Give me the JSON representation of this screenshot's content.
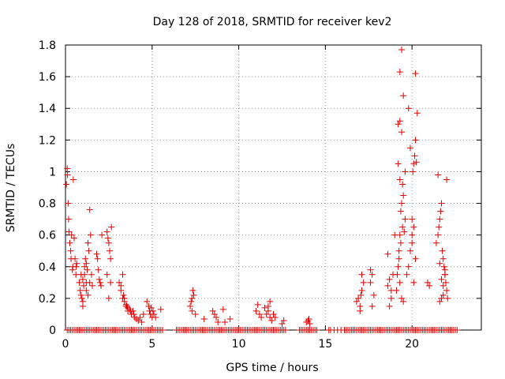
{
  "chart_data": {
    "type": "scatter",
    "title": "Day 128 of 2018, SRMTID for receiver kev2",
    "xlabel": "GPS time / hours",
    "ylabel": "SRMTID / TECUs",
    "xlim": [
      0,
      24
    ],
    "ylim": [
      0,
      1.8
    ],
    "xticks": [
      0,
      5,
      10,
      15,
      20
    ],
    "yticks": [
      0,
      0.2,
      0.4,
      0.6,
      0.8,
      1,
      1.2,
      1.4,
      1.6,
      1.8
    ],
    "xtick_labels": [
      "0",
      "5",
      "10",
      "15",
      "20"
    ],
    "ytick_labels": [
      "0",
      "0.2",
      "0.4",
      "0.6",
      "0.8",
      "1",
      "1.2",
      "1.4",
      "1.6",
      "1.8"
    ],
    "grid": true,
    "marker": "+",
    "color": "#e00000",
    "series": [
      {
        "name": "SRMTID",
        "x": [
          0.05,
          0.1,
          0.12,
          0.15,
          0.18,
          0.2,
          0.25,
          0.3,
          0.32,
          0.35,
          0.4,
          0.42,
          0.45,
          0.5,
          0.55,
          0.6,
          0.62,
          0.65,
          0.8,
          0.85,
          0.9,
          0.95,
          1.0,
          1.0,
          1.05,
          1.1,
          1.1,
          1.15,
          1.2,
          1.2,
          1.25,
          1.3,
          1.35,
          1.4,
          1.45,
          1.5,
          1.55,
          1.2,
          1.3,
          1.4,
          1.0,
          0.9,
          1.8,
          1.85,
          1.9,
          1.95,
          2.0,
          2.05,
          2.1,
          2.4,
          2.45,
          2.5,
          2.55,
          2.6,
          2.65,
          2.4,
          2.5,
          2.6,
          3.1,
          3.2,
          3.3,
          3.35,
          3.4,
          3.5,
          3.55,
          3.6,
          3.7,
          3.75,
          3.8,
          3.9,
          3.95,
          4.0,
          4.1,
          4.2,
          4.3,
          4.4,
          4.5,
          3.4,
          3.5,
          3.6,
          3.3,
          3.2,
          4.7,
          4.8,
          4.85,
          4.9,
          4.95,
          5.0,
          5.05,
          5.1,
          5.2,
          5.5,
          7.2,
          7.25,
          7.3,
          7.35,
          7.4,
          7.3,
          7.5,
          8.0,
          8.5,
          8.6,
          8.7,
          8.8,
          9.1,
          9.2,
          9.5,
          11.0,
          11.1,
          11.2,
          11.3,
          11.5,
          11.6,
          11.7,
          11.8,
          11.9,
          12.0,
          12.1,
          11.7,
          11.8,
          12.5,
          12.6,
          13.9,
          14.0,
          14.05,
          14.1,
          16.8,
          16.9,
          17.0,
          17.05,
          17.1,
          17.2,
          17.0,
          17.1,
          17.6,
          17.7,
          17.8,
          17.6,
          17.7,
          18.6,
          18.7,
          18.8,
          18.9,
          19.0,
          18.7,
          18.8,
          18.6,
          19.1,
          19.15,
          19.2,
          19.25,
          19.3,
          19.35,
          19.4,
          19.45,
          19.5,
          19.55,
          19.6,
          19.2,
          19.3,
          19.4,
          19.5,
          19.3,
          19.4,
          19.25,
          19.35,
          19.45,
          19.3,
          19.4,
          19.5,
          19.2,
          19.6,
          19.3,
          19.7,
          19.8,
          19.9,
          20.0,
          20.05,
          20.1,
          20.15,
          20.2,
          20.25,
          19.9,
          20.0,
          20.1,
          20.2,
          19.8,
          20.2,
          20.3,
          20.1,
          20.0,
          20.9,
          21.0,
          21.4,
          21.5,
          21.55,
          21.6,
          21.65,
          21.7,
          21.75,
          21.8,
          21.85,
          21.9,
          21.95,
          22.0,
          22.05,
          21.6,
          21.7,
          21.8,
          21.9,
          22.0,
          21.5,
          21.6,
          21.7,
          21.8,
          21.9
        ],
        "y": [
          0.92,
          1.02,
          0.98,
          0.8,
          0.7,
          0.62,
          0.55,
          0.5,
          0.45,
          0.6,
          0.38,
          0.4,
          0.95,
          0.58,
          0.45,
          0.35,
          0.4,
          0.42,
          0.3,
          0.25,
          0.22,
          0.2,
          0.18,
          0.32,
          0.28,
          0.35,
          0.4,
          0.45,
          0.3,
          0.42,
          0.38,
          0.55,
          0.5,
          0.76,
          0.6,
          0.35,
          0.28,
          0.25,
          0.22,
          0.3,
          0.15,
          0.35,
          0.48,
          0.45,
          0.38,
          0.32,
          0.3,
          0.28,
          0.6,
          0.62,
          0.58,
          0.55,
          0.5,
          0.45,
          0.65,
          0.35,
          0.2,
          0.3,
          0.3,
          0.25,
          0.2,
          0.22,
          0.18,
          0.16,
          0.15,
          0.14,
          0.13,
          0.12,
          0.1,
          0.12,
          0.1,
          0.08,
          0.07,
          0.06,
          0.08,
          0.05,
          0.1,
          0.2,
          0.15,
          0.12,
          0.35,
          0.28,
          0.18,
          0.15,
          0.12,
          0.1,
          0.14,
          0.08,
          0.12,
          0.1,
          0.08,
          0.13,
          0.15,
          0.18,
          0.2,
          0.25,
          0.22,
          0.12,
          0.1,
          0.07,
          0.12,
          0.1,
          0.08,
          0.05,
          0.13,
          0.05,
          0.07,
          0.12,
          0.16,
          0.1,
          0.08,
          0.14,
          0.1,
          0.12,
          0.08,
          0.06,
          0.1,
          0.08,
          0.15,
          0.18,
          0.04,
          0.06,
          0.05,
          0.06,
          0.07,
          0.04,
          0.18,
          0.2,
          0.15,
          0.22,
          0.25,
          0.3,
          0.12,
          0.35,
          0.3,
          0.35,
          0.22,
          0.38,
          0.15,
          0.28,
          0.32,
          0.25,
          0.35,
          0.6,
          0.15,
          0.2,
          0.48,
          0.25,
          0.35,
          0.4,
          0.5,
          0.6,
          0.75,
          0.8,
          0.92,
          0.85,
          0.62,
          0.7,
          1.3,
          1.32,
          1.25,
          1.48,
          1.63,
          1.77,
          0.45,
          0.55,
          0.65,
          0.3,
          0.2,
          0.18,
          1.05,
          1.0,
          0.95,
          0.35,
          0.4,
          0.5,
          0.6,
          1.0,
          1.05,
          1.1,
          1.2,
          1.06,
          1.15,
          0.7,
          0.65,
          0.45,
          1.4,
          1.62,
          1.37,
          0.3,
          0.55,
          0.3,
          0.28,
          0.55,
          0.6,
          0.65,
          0.7,
          0.75,
          0.8,
          0.5,
          0.45,
          0.4,
          0.35,
          0.3,
          0.25,
          0.2,
          0.18,
          0.2,
          0.22,
          0.38,
          0.95,
          0.98,
          0.42,
          0.32,
          0.28,
          0.35
        ],
        "zeros_x": [
          0.1,
          0.2,
          0.3,
          0.4,
          0.5,
          0.6,
          0.7,
          0.8,
          0.9,
          1.0,
          1.1,
          1.2,
          1.3,
          1.4,
          1.5,
          1.6,
          1.7,
          1.8,
          1.9,
          2.0,
          2.1,
          2.2,
          2.3,
          2.4,
          2.5,
          2.6,
          2.7,
          2.8,
          2.9,
          3.0,
          3.1,
          3.2,
          3.3,
          3.4,
          3.5,
          3.6,
          3.7,
          3.8,
          3.9,
          4.0,
          4.1,
          4.2,
          4.3,
          4.4,
          4.5,
          4.6,
          4.7,
          4.8,
          4.9,
          5.0,
          5.1,
          5.2,
          5.3,
          5.4,
          5.5,
          5.6,
          6.4,
          6.5,
          6.6,
          6.7,
          6.8,
          6.9,
          7.0,
          7.1,
          7.2,
          7.3,
          7.4,
          7.5,
          7.6,
          7.7,
          7.8,
          7.9,
          8.0,
          8.1,
          8.2,
          8.3,
          8.4,
          8.5,
          8.6,
          8.7,
          8.8,
          8.9,
          9.0,
          9.1,
          9.2,
          9.3,
          9.4,
          9.5,
          9.6,
          9.7,
          9.8,
          9.9,
          10.0,
          10.1,
          10.2,
          10.3,
          10.4,
          10.5,
          10.6,
          10.7,
          10.8,
          10.9,
          11.0,
          11.1,
          11.2,
          11.3,
          11.4,
          11.5,
          11.6,
          11.7,
          11.8,
          11.9,
          12.0,
          12.1,
          12.2,
          12.3,
          12.4,
          12.5,
          12.6,
          12.7,
          13.5,
          13.6,
          13.7,
          13.8,
          13.9,
          14.0,
          14.1,
          14.2,
          14.3,
          14.4,
          14.5,
          15.2,
          15.3,
          15.5,
          15.7,
          15.9,
          16.1,
          16.2,
          16.3,
          16.4,
          16.5,
          16.6,
          16.7,
          16.8,
          16.9,
          17.0,
          17.1,
          17.2,
          17.3,
          17.4,
          17.5,
          17.6,
          17.7,
          17.8,
          17.9,
          18.0,
          18.1,
          18.2,
          18.3,
          18.4,
          18.5,
          18.6,
          18.7,
          18.8,
          18.9,
          19.0,
          19.1,
          19.2,
          19.3,
          19.4,
          19.5,
          19.6,
          19.7,
          19.8,
          19.9,
          20.0,
          20.1,
          20.2,
          20.3,
          20.4,
          20.5,
          20.6,
          20.7,
          20.8,
          20.9,
          21.0,
          21.1,
          21.2,
          21.3,
          21.4,
          21.5,
          21.6,
          21.7,
          21.8,
          21.9,
          22.0,
          22.1,
          22.2,
          22.3,
          22.4,
          22.5,
          22.6
        ]
      }
    ]
  }
}
